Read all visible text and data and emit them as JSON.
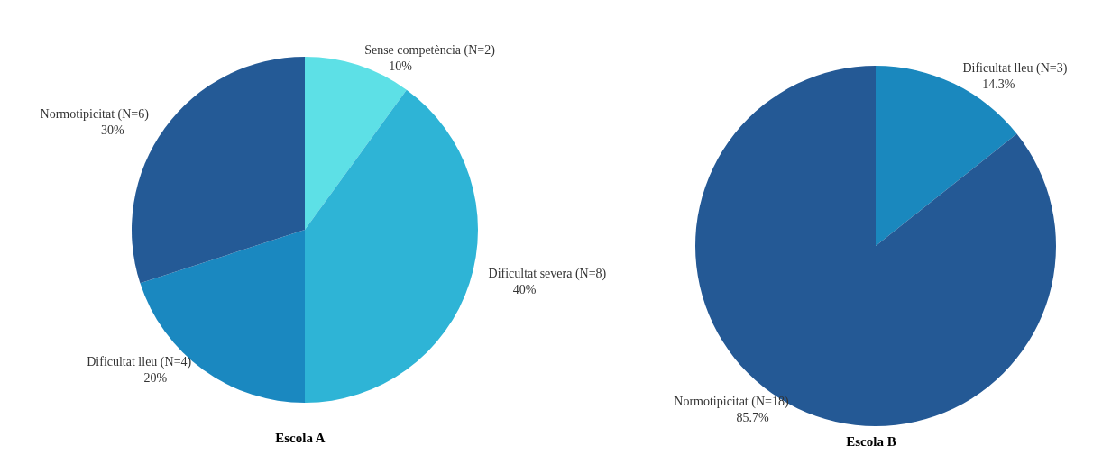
{
  "chart_data": [
    {
      "type": "pie",
      "title": "Escola A",
      "categories": [
        "Sense competència (N=2)",
        "Dificultat severa (N=8)",
        "Dificultat lleu (N=4)",
        "Normotipicitat (N=6)"
      ],
      "values": [
        10,
        40,
        20,
        30
      ],
      "colors": [
        "#5de0e6",
        "#2eb4d6",
        "#1a88c0",
        "#245a96"
      ],
      "value_labels": [
        "10%",
        "40%",
        "20%",
        "30%"
      ],
      "legend": false
    },
    {
      "type": "pie",
      "title": "Escola B",
      "categories": [
        "Dificultat lleu (N=3)",
        "Normotipicitat (N=18)"
      ],
      "values": [
        14.3,
        85.7
      ],
      "colors": [
        "#1a88be",
        "#245995"
      ],
      "value_labels": [
        "14.3%",
        "85.7%"
      ],
      "legend": false
    }
  ]
}
